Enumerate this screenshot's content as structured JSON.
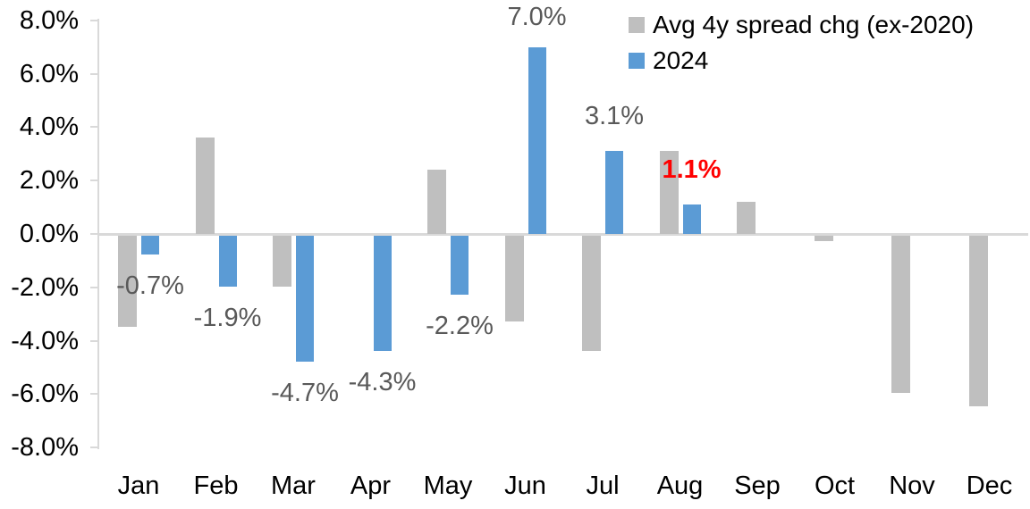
{
  "chart_data": {
    "type": "bar",
    "title": "",
    "xlabel": "",
    "ylabel": "",
    "categories": [
      "Jan",
      "Feb",
      "Mar",
      "Apr",
      "May",
      "Jun",
      "Jul",
      "Aug",
      "Sep",
      "Oct",
      "Nov",
      "Dec"
    ],
    "series": [
      {
        "name": "Avg 4y spread chg (ex-2020)",
        "color": "#BFBFBF",
        "values": [
          -3.4,
          3.6,
          -1.9,
          0,
          2.4,
          -3.2,
          -4.3,
          3.1,
          1.2,
          -0.2,
          -5.9,
          -6.4
        ]
      },
      {
        "name": "2024",
        "color": "#5B9BD5",
        "values": [
          -0.7,
          -1.9,
          -4.7,
          -4.3,
          -2.2,
          7.0,
          3.1,
          1.1,
          null,
          null,
          null,
          null
        ]
      }
    ],
    "data_labels": {
      "labeled_series": "2024",
      "default_color": "#595959",
      "emphasis_color": "#FF0000",
      "items": [
        {
          "category": "Jan",
          "text": "-0.7%",
          "emphasis": false
        },
        {
          "category": "Feb",
          "text": "-1.9%",
          "emphasis": false
        },
        {
          "category": "Mar",
          "text": "-4.7%",
          "emphasis": false
        },
        {
          "category": "Apr",
          "text": "-4.3%",
          "emphasis": false
        },
        {
          "category": "May",
          "text": "-2.2%",
          "emphasis": false
        },
        {
          "category": "Jun",
          "text": "7.0%",
          "emphasis": false
        },
        {
          "category": "Jul",
          "text": "3.1%",
          "emphasis": false
        },
        {
          "category": "Aug",
          "text": "1.1%",
          "emphasis": true
        }
      ]
    },
    "y_axis": {
      "ylim": [
        -8,
        8
      ],
      "tick_step": 2,
      "tick_labels": [
        "8.0%",
        "6.0%",
        "4.0%",
        "2.0%",
        "0.0%",
        "-2.0%",
        "-4.0%",
        "-6.0%",
        "-8.0%"
      ],
      "axis_color": "#D9D9D9",
      "label_color": "#000000"
    },
    "legend_position": "top-right",
    "grid": false,
    "background_color": "#FFFFFF"
  }
}
